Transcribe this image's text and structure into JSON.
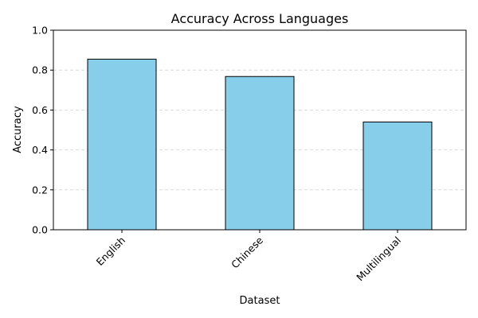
{
  "chart_data": {
    "type": "bar",
    "title": "Accuracy Across Languages",
    "xlabel": "Dataset",
    "ylabel": "Accuracy",
    "categories": [
      "English",
      "Chinese",
      "Multilingual"
    ],
    "values": [
      0.855,
      0.768,
      0.54
    ],
    "ylim": [
      0,
      1
    ],
    "yticks": [
      0.0,
      0.2,
      0.4,
      0.6,
      0.8,
      1.0
    ],
    "ytick_labels": [
      "0.0",
      "0.2",
      "0.4",
      "0.6",
      "0.8",
      "1.0"
    ],
    "xtick_rotation": 45,
    "grid": {
      "axis": "y",
      "style": "dashed",
      "color": "#d3d3d3"
    },
    "bar_color": "#87ceeb",
    "bar_edge_color": "#000000"
  }
}
